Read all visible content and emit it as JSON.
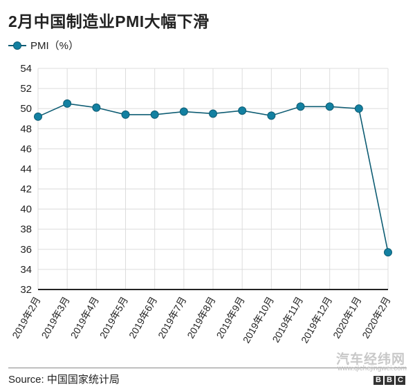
{
  "title": "2月中国制造业PMI大幅下滑",
  "legend": {
    "label": "PMI（%）",
    "marker_color": "#1380a1",
    "line_color": "#0d5c73"
  },
  "source": "Source: 中国国家统计局",
  "watermark": {
    "name": "汽车经纬网",
    "url": "www.qichejingwei.com"
  },
  "logo": [
    "B",
    "B",
    "C"
  ],
  "chart_data": {
    "type": "line",
    "title": "2月中国制造业PMI大幅下滑",
    "xlabel": "",
    "ylabel": "",
    "ylim": [
      32,
      54
    ],
    "yticks": [
      32,
      34,
      36,
      38,
      40,
      42,
      44,
      46,
      48,
      50,
      52,
      54
    ],
    "grid": true,
    "legend_position": "top-left",
    "categories": [
      "2019年2月",
      "2019年3月",
      "2019年4月",
      "2019年5月",
      "2019年6月",
      "2019年7月",
      "2019年8月",
      "2019年9月",
      "2019年10月",
      "2019年11月",
      "2019年12月",
      "2020年1月",
      "2020年2月"
    ],
    "series": [
      {
        "name": "PMI（%）",
        "values": [
          49.2,
          50.5,
          50.1,
          49.4,
          49.4,
          49.7,
          49.5,
          49.8,
          49.3,
          50.2,
          50.2,
          50.0,
          35.7
        ]
      }
    ]
  }
}
